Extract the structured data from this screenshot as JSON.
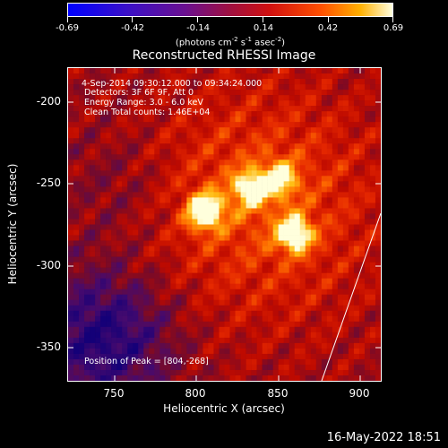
{
  "colorbar": {
    "tick_labels": [
      "-0.69",
      "-0.42",
      "-0.14",
      "0.14",
      "0.42",
      "0.69"
    ],
    "units_text": "(photons cm",
    "units_exp1": "-2",
    "units_mid": " s",
    "units_exp2": "-1",
    "units_mid2": " asec",
    "units_exp3": "-2",
    "units_end": ")"
  },
  "title": "Reconstructed RHESSI Image",
  "overlay": {
    "time_range": "4-Sep-2014 09:30:12.000 to 09:34:24.000",
    "detectors": "Detectors: 3F 6F 9F, Att 0",
    "energy": "Energy Range: 3.0 - 6.0 keV",
    "clean": "Clean     Total counts: 1.46E+04",
    "peak": "Position of Peak = [804,-268]"
  },
  "axes": {
    "xlabel": "Heliocentric X (arcsec)",
    "ylabel": "Heliocentric Y (arcsec)",
    "xticks": [
      "750",
      "800",
      "850",
      "900"
    ],
    "yticks": [
      "-200",
      "-250",
      "-300",
      "-350"
    ]
  },
  "timestamp": "16-May-2022 18:51",
  "chart_data": {
    "type": "heatmap",
    "title": "Reconstructed RHESSI Image",
    "xlabel": "Heliocentric X (arcsec)",
    "ylabel": "Heliocentric Y (arcsec)",
    "xlim": [
      720,
      912
    ],
    "ylim": [
      -372,
      -180
    ],
    "colorbar_range": [
      -0.69,
      0.69
    ],
    "peak": [
      804,
      -268
    ],
    "sources": [
      {
        "x": 804,
        "y": -268,
        "peak": 0.69
      },
      {
        "x": 859,
        "y": -282,
        "peak": 0.6
      },
      {
        "x": 832,
        "y": -254,
        "peak": 0.5
      },
      {
        "x": 850,
        "y": -248,
        "peak": 0.45
      }
    ],
    "grid": false
  }
}
